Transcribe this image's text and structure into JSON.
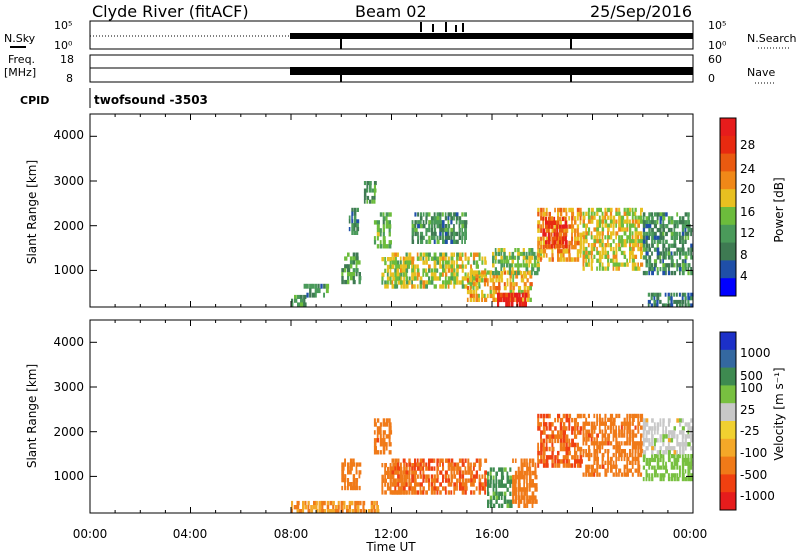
{
  "header": {
    "station": "Clyde River (fitACF)",
    "beam": "Beam 02",
    "date": "25/Sep/2016"
  },
  "aux_panels": {
    "nsky": {
      "left_label": "N.Sky",
      "left_ticks": [
        "10^5",
        "10^0"
      ],
      "right_ticks": [
        "10^5",
        "10^0"
      ],
      "right_label": "N.Search"
    },
    "freq": {
      "left_label_1": "Freq.",
      "left_label_2": "[MHz]",
      "left_ticks": [
        "18",
        "8"
      ],
      "right_ticks": [
        "60",
        "0"
      ],
      "right_label": "Nave"
    },
    "cpid": {
      "left_label": "CPID",
      "program": "twofsound  -3503"
    }
  },
  "colors": {
    "power_scale": [
      "#0000ff",
      "#1f4fa8",
      "#3e7a52",
      "#4a9a5a",
      "#6cbc3c",
      "#e8c020",
      "#f08818",
      "#ea5a10",
      "#e82a10",
      "#e61c1c"
    ],
    "velocity_scale": [
      "#e61c1c",
      "#f04010",
      "#f07a18",
      "#f4a828",
      "#f0d030",
      "#c8c8c8",
      "#78c040",
      "#3e8a50",
      "#3468a0",
      "#1c30c8"
    ]
  },
  "chart_data": [
    {
      "type": "heatmap",
      "name": "power",
      "x": [
        "00:00",
        "04:00",
        "08:00",
        "12:00",
        "16:00",
        "20:00",
        "00:00"
      ],
      "xlim": [
        0,
        24
      ],
      "ylabel": "Slant Range [km]",
      "y_ticks": [
        "4000",
        "3000",
        "2000",
        "1000"
      ],
      "ylim": [
        180,
        4500
      ],
      "colorbar": {
        "label": "Power [dB]",
        "ticks": [
          "28",
          "24",
          "20",
          "16",
          "12",
          "8",
          "4"
        ],
        "range": [
          0,
          30
        ]
      },
      "regions": [
        {
          "t0": 8.0,
          "t1": 8.6,
          "r0": 200,
          "r1": 450,
          "v": 10
        },
        {
          "t0": 8.5,
          "t1": 9.5,
          "r0": 400,
          "r1": 700,
          "v": 9
        },
        {
          "t0": 10.0,
          "t1": 10.8,
          "r0": 700,
          "r1": 1400,
          "v": 11
        },
        {
          "t0": 10.3,
          "t1": 10.7,
          "r0": 1800,
          "r1": 2400,
          "v": 8
        },
        {
          "t0": 10.9,
          "t1": 11.4,
          "r0": 2500,
          "r1": 3000,
          "v": 10
        },
        {
          "t0": 11.3,
          "t1": 12.0,
          "r0": 1500,
          "r1": 2300,
          "v": 12
        },
        {
          "t0": 11.6,
          "t1": 12.9,
          "r0": 600,
          "r1": 1300,
          "v": 14
        },
        {
          "t0": 12.0,
          "t1": 15.8,
          "r0": 600,
          "r1": 1400,
          "v": 15
        },
        {
          "t0": 12.8,
          "t1": 15.0,
          "r0": 1600,
          "r1": 2300,
          "v": 9
        },
        {
          "t0": 15.0,
          "t1": 17.6,
          "r0": 300,
          "r1": 1000,
          "v": 18
        },
        {
          "t0": 16.2,
          "t1": 17.4,
          "r0": 200,
          "r1": 500,
          "v": 27
        },
        {
          "t0": 16.0,
          "t1": 18.0,
          "r0": 900,
          "r1": 1500,
          "v": 13
        },
        {
          "t0": 17.8,
          "t1": 19.6,
          "r0": 1200,
          "r1": 2400,
          "v": 19
        },
        {
          "t0": 18.0,
          "t1": 19.0,
          "r0": 1500,
          "r1": 2200,
          "v": 24
        },
        {
          "t0": 19.6,
          "t1": 22.0,
          "r0": 1000,
          "r1": 2400,
          "v": 16
        },
        {
          "t0": 22.0,
          "t1": 24.0,
          "r0": 900,
          "r1": 2300,
          "v": 9
        },
        {
          "t0": 22.2,
          "t1": 24.0,
          "r0": 180,
          "r1": 500,
          "v": 7
        }
      ]
    },
    {
      "type": "heatmap",
      "name": "velocity",
      "x": [
        "00:00",
        "04:00",
        "08:00",
        "12:00",
        "16:00",
        "20:00",
        "00:00"
      ],
      "xlabel": "Time UT",
      "xlim": [
        0,
        24
      ],
      "ylabel": "Slant Range [km]",
      "y_ticks": [
        "4000",
        "3000",
        "2000",
        "1000"
      ],
      "ylim": [
        180,
        4500
      ],
      "colorbar": {
        "label": "Velocity [m s^-1]",
        "ticks": [
          "1000",
          "500",
          "100",
          "25",
          "-25",
          "-100",
          "-500",
          "-1000"
        ],
        "range": [
          -1000,
          1000
        ]
      },
      "regions": [
        {
          "t0": 8.0,
          "t1": 11.5,
          "r0": 180,
          "r1": 450,
          "v": -100
        },
        {
          "t0": 10.0,
          "t1": 10.8,
          "r0": 700,
          "r1": 1400,
          "v": -300
        },
        {
          "t0": 11.3,
          "t1": 12.0,
          "r0": 1500,
          "r1": 2300,
          "v": -350
        },
        {
          "t0": 11.6,
          "t1": 12.9,
          "r0": 600,
          "r1": 1300,
          "v": -300
        },
        {
          "t0": 12.0,
          "t1": 15.8,
          "r0": 600,
          "r1": 1400,
          "v": -450
        },
        {
          "t0": 15.8,
          "t1": 16.8,
          "r0": 300,
          "r1": 1200,
          "v": 150
        },
        {
          "t0": 16.8,
          "t1": 17.8,
          "r0": 300,
          "r1": 1400,
          "v": -250
        },
        {
          "t0": 17.8,
          "t1": 19.6,
          "r0": 1200,
          "r1": 2400,
          "v": -500
        },
        {
          "t0": 19.6,
          "t1": 22.0,
          "r0": 1000,
          "r1": 2400,
          "v": -350
        },
        {
          "t0": 22.0,
          "t1": 24.0,
          "r0": 900,
          "r1": 1500,
          "v": 60
        },
        {
          "t0": 22.0,
          "t1": 24.0,
          "r0": 1500,
          "r1": 2300,
          "v": 0
        }
      ]
    }
  ]
}
